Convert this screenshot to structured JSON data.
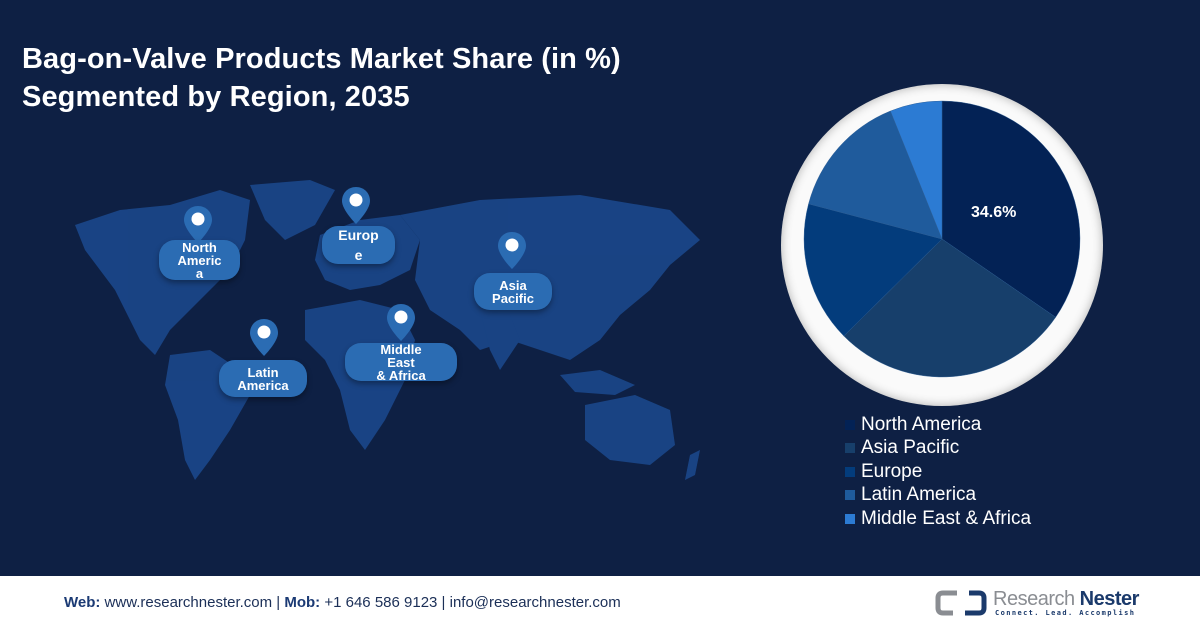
{
  "title": {
    "line1": "Bag-on-Valve Products Market Share (in %)",
    "line2": "Segmented by Region, 2035"
  },
  "map": {
    "pins": [
      {
        "label": "North\nAmeric\na",
        "icon": "location-pin-icon"
      },
      {
        "label": "Europ\ne",
        "icon": "location-pin-icon"
      },
      {
        "label": "Asia\nPacific",
        "icon": "location-pin-icon"
      },
      {
        "label": "Latin\nAmerica",
        "icon": "location-pin-icon"
      },
      {
        "label": "Middle\nEast\n& Africa",
        "icon": "location-pin-icon"
      }
    ]
  },
  "pie": {
    "highlight_label": "34.6%"
  },
  "legend": [
    {
      "label": "North America",
      "color": "#032255"
    },
    {
      "label": "Asia Pacific",
      "color": "#173f6b"
    },
    {
      "label": "Europe",
      "color": "#033c7c"
    },
    {
      "label": "Latin America",
      "color": "#1f5b9c"
    },
    {
      "label": "Middle East & Africa",
      "color": "#2c7bd3"
    }
  ],
  "footer": {
    "web_label": "Web:",
    "web_value": " www.researchnester.com | ",
    "mob_label": "Mob:",
    "mob_value": " +1 646 586 9123 | info@researchnester.com",
    "logo_research": "Research ",
    "logo_nester": "Nester",
    "logo_tagline": "Connect. Lead. Accomplish"
  },
  "chart_data": {
    "type": "pie",
    "title": "Bag-on-Valve Products Market Share (in %) Segmented by Region, 2035",
    "categories": [
      "North America",
      "Asia Pacific",
      "Europe",
      "Latin America",
      "Middle East & Africa"
    ],
    "values": [
      34.6,
      28.0,
      16.5,
      14.8,
      6.1
    ],
    "colors": [
      "#032255",
      "#173f6b",
      "#033c7c",
      "#1f5b9c",
      "#2c7bd3"
    ],
    "data_labels": {
      "North America": "34.6%"
    },
    "legend_position": "bottom-right",
    "start_angle": "12 o'clock, clockwise"
  }
}
